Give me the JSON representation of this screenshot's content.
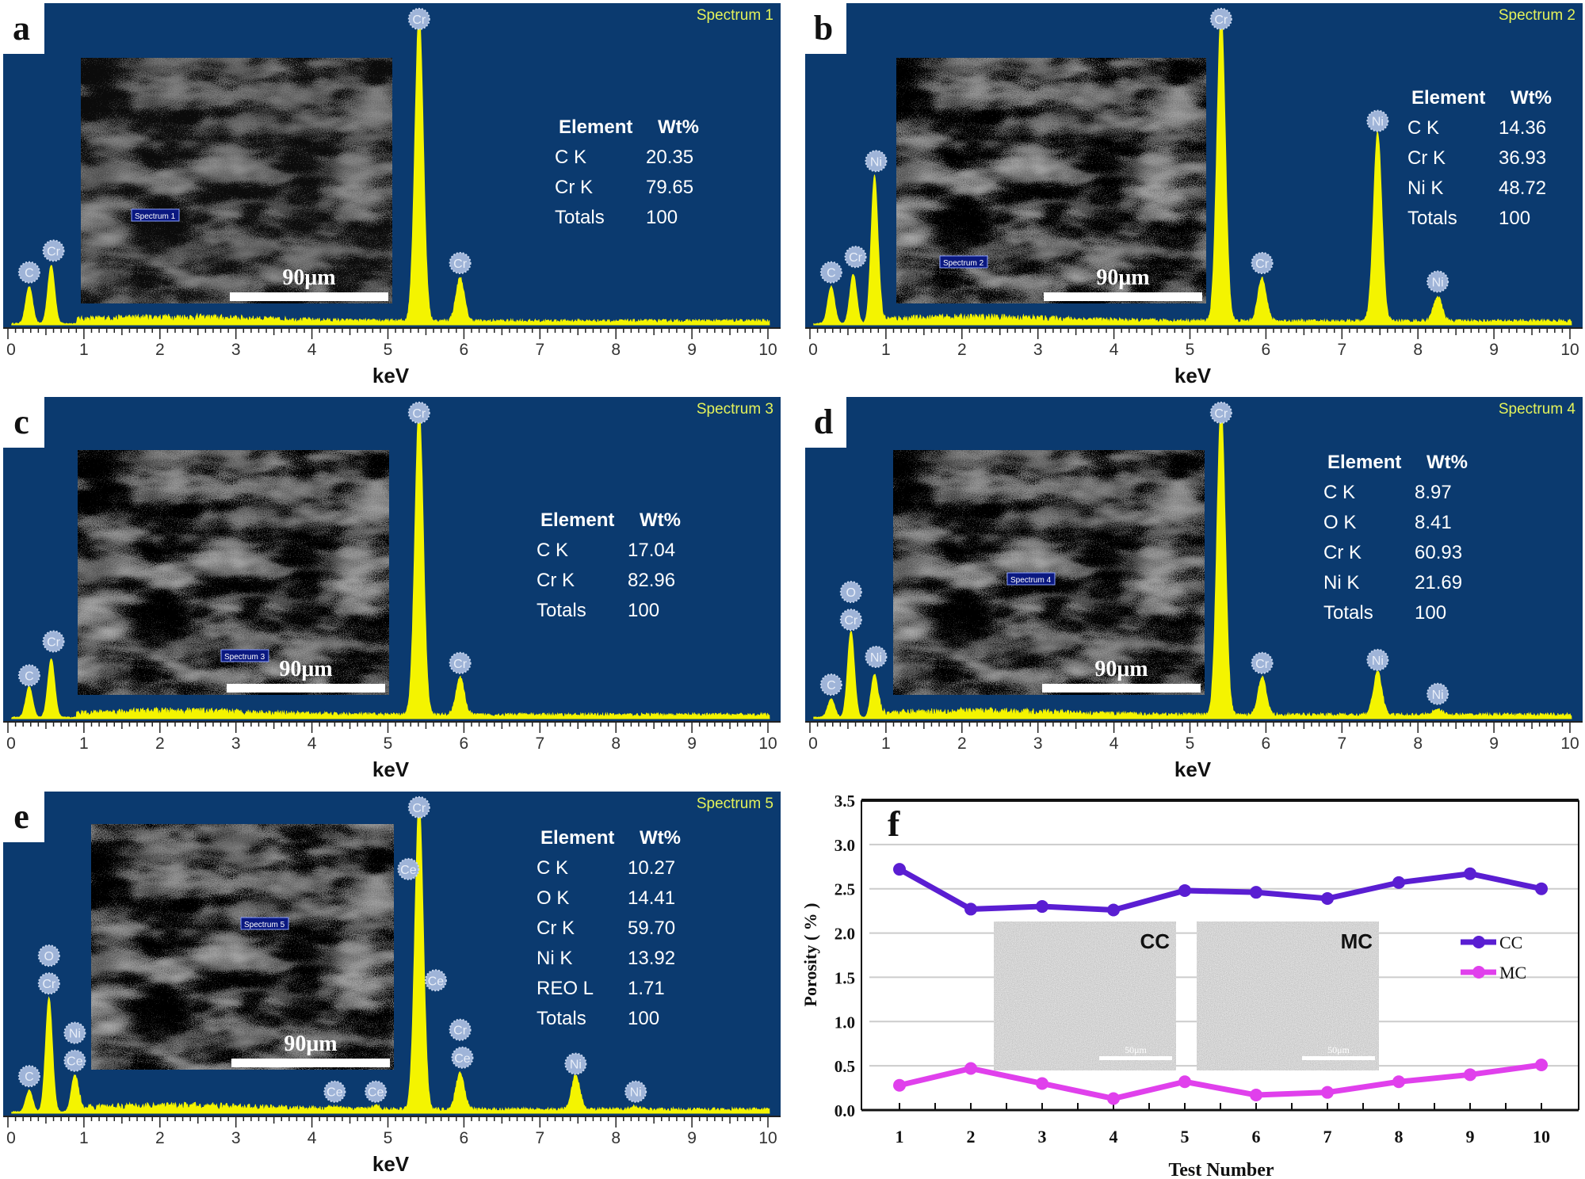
{
  "colors": {
    "plot_bg": "#0b3a6f",
    "spectrum": "#f4f400",
    "spectrum_title": "#e4f25a",
    "cc": "#5a1ed2",
    "mc": "#e040ec"
  },
  "chart_data": [
    {
      "type": "area",
      "panel": "a",
      "title": "Spectrum 1",
      "xlabel": "keV",
      "xlim": [
        0,
        10
      ],
      "xticks": [
        "0",
        "1",
        "2",
        "3",
        "4",
        "5",
        "6",
        "7",
        "8",
        "9",
        "10"
      ],
      "scale_bar": "90μm",
      "peaks": [
        {
          "kev": 0.28,
          "height": 0.12
        },
        {
          "kev": 0.57,
          "height": 0.19
        },
        {
          "kev": 5.41,
          "height": 1.0
        },
        {
          "kev": 5.95,
          "height": 0.14
        }
      ],
      "peak_labels": [
        {
          "element": "C",
          "kev": 0.28,
          "level": 0.17
        },
        {
          "element": "Cr",
          "kev": 0.6,
          "level": 0.24
        },
        {
          "element": "Cr",
          "kev": 5.41,
          "level": 0.99
        },
        {
          "element": "Cr",
          "kev": 5.95,
          "level": 0.2
        }
      ],
      "table": {
        "headers": [
          "Element",
          "Wt%"
        ],
        "rows": [
          [
            "C K",
            "20.35"
          ],
          [
            "Cr K",
            "79.65"
          ],
          [
            "Totals",
            "100"
          ]
        ]
      }
    },
    {
      "type": "area",
      "panel": "b",
      "title": "Spectrum 2",
      "xlabel": "keV",
      "xlim": [
        0,
        10
      ],
      "xticks": [
        "0",
        "1",
        "2",
        "3",
        "4",
        "5",
        "6",
        "7",
        "8",
        "9",
        "10"
      ],
      "scale_bar": "90μm",
      "peaks": [
        {
          "kev": 0.28,
          "height": 0.12
        },
        {
          "kev": 0.57,
          "height": 0.16
        },
        {
          "kev": 0.85,
          "height": 0.48
        },
        {
          "kev": 5.41,
          "height": 1.0
        },
        {
          "kev": 5.95,
          "height": 0.14
        },
        {
          "kev": 7.47,
          "height": 0.61
        },
        {
          "kev": 8.26,
          "height": 0.08
        }
      ],
      "peak_labels": [
        {
          "element": "C",
          "kev": 0.28,
          "level": 0.17
        },
        {
          "element": "Cr",
          "kev": 0.6,
          "level": 0.22
        },
        {
          "element": "Ni",
          "kev": 0.87,
          "level": 0.53
        },
        {
          "element": "Cr",
          "kev": 5.41,
          "level": 0.99
        },
        {
          "element": "Cr",
          "kev": 5.95,
          "level": 0.2
        },
        {
          "element": "Ni",
          "kev": 7.47,
          "level": 0.66
        },
        {
          "element": "Ni",
          "kev": 8.26,
          "level": 0.14
        }
      ],
      "table": {
        "headers": [
          "Element",
          "Wt%"
        ],
        "rows": [
          [
            "C K",
            "14.36"
          ],
          [
            "Cr K",
            "36.93"
          ],
          [
            "Ni K",
            "48.72"
          ],
          [
            "Totals",
            "100"
          ]
        ]
      }
    },
    {
      "type": "area",
      "panel": "c",
      "title": "Spectrum 3",
      "xlabel": "keV",
      "xlim": [
        0,
        10
      ],
      "xticks": [
        "0",
        "1",
        "2",
        "3",
        "4",
        "5",
        "6",
        "7",
        "8",
        "9",
        "10"
      ],
      "scale_bar": "90μm",
      "peaks": [
        {
          "kev": 0.28,
          "height": 0.1
        },
        {
          "kev": 0.57,
          "height": 0.19
        },
        {
          "kev": 5.41,
          "height": 1.0
        },
        {
          "kev": 5.95,
          "height": 0.12
        }
      ],
      "peak_labels": [
        {
          "element": "C",
          "kev": 0.28,
          "level": 0.14
        },
        {
          "element": "Cr",
          "kev": 0.6,
          "level": 0.25
        },
        {
          "element": "Cr",
          "kev": 5.41,
          "level": 0.99
        },
        {
          "element": "Cr",
          "kev": 5.95,
          "level": 0.18
        }
      ],
      "table": {
        "headers": [
          "Element",
          "Wt%"
        ],
        "rows": [
          [
            "C K",
            "17.04"
          ],
          [
            "Cr K",
            "82.96"
          ],
          [
            "Totals",
            "100"
          ]
        ]
      }
    },
    {
      "type": "area",
      "panel": "d",
      "title": "Spectrum 4",
      "xlabel": "keV",
      "xlim": [
        0,
        10
      ],
      "xticks": [
        "0",
        "1",
        "2",
        "3",
        "4",
        "5",
        "6",
        "7",
        "8",
        "9",
        "10"
      ],
      "scale_bar": "90μm",
      "peaks": [
        {
          "kev": 0.28,
          "height": 0.06
        },
        {
          "kev": 0.54,
          "height": 0.28
        },
        {
          "kev": 0.85,
          "height": 0.14
        },
        {
          "kev": 5.41,
          "height": 1.0
        },
        {
          "kev": 5.95,
          "height": 0.12
        },
        {
          "kev": 7.47,
          "height": 0.14
        },
        {
          "kev": 8.26,
          "height": 0.02
        }
      ],
      "peak_labels": [
        {
          "element": "C",
          "kev": 0.28,
          "level": 0.11
        },
        {
          "element": "O",
          "kev": 0.54,
          "level": 0.41
        },
        {
          "element": "Cr",
          "kev": 0.54,
          "level": 0.32
        },
        {
          "element": "Ni",
          "kev": 0.87,
          "level": 0.2
        },
        {
          "element": "Cr",
          "kev": 5.41,
          "level": 0.99
        },
        {
          "element": "Cr",
          "kev": 5.95,
          "level": 0.18
        },
        {
          "element": "Ni",
          "kev": 7.47,
          "level": 0.19
        },
        {
          "element": "Ni",
          "kev": 8.26,
          "level": 0.08
        }
      ],
      "table": {
        "headers": [
          "Element",
          "Wt%"
        ],
        "rows": [
          [
            "C K",
            "8.97"
          ],
          [
            "O K",
            "8.41"
          ],
          [
            "Cr K",
            "60.93"
          ],
          [
            "Ni K",
            "21.69"
          ],
          [
            "Totals",
            "100"
          ]
        ]
      }
    },
    {
      "type": "area",
      "panel": "e",
      "title": "Spectrum 5",
      "xlabel": "keV",
      "xlim": [
        0,
        10
      ],
      "xticks": [
        "0",
        "1",
        "2",
        "3",
        "4",
        "5",
        "6",
        "7",
        "8",
        "9",
        "10"
      ],
      "scale_bar": "90μm",
      "peaks": [
        {
          "kev": 0.28,
          "height": 0.07
        },
        {
          "kev": 0.54,
          "height": 0.37
        },
        {
          "kev": 0.88,
          "height": 0.12
        },
        {
          "kev": 4.3,
          "height": 0.01
        },
        {
          "kev": 4.84,
          "height": 0.01
        },
        {
          "kev": 5.41,
          "height": 1.0
        },
        {
          "kev": 5.95,
          "height": 0.12
        },
        {
          "kev": 7.47,
          "height": 0.11
        },
        {
          "kev": 8.26,
          "height": 0.01
        }
      ],
      "peak_labels": [
        {
          "element": "C",
          "kev": 0.28,
          "level": 0.12
        },
        {
          "element": "O",
          "kev": 0.54,
          "level": 0.51
        },
        {
          "element": "Cr",
          "kev": 0.54,
          "level": 0.42
        },
        {
          "element": "Ni",
          "kev": 0.88,
          "level": 0.26
        },
        {
          "element": "Ce",
          "kev": 0.88,
          "level": 0.17
        },
        {
          "element": "Ce",
          "kev": 4.3,
          "level": 0.07
        },
        {
          "element": "Ce",
          "kev": 4.84,
          "level": 0.07
        },
        {
          "element": "Cr",
          "kev": 5.41,
          "level": 0.99
        },
        {
          "element": "Ce",
          "kev": 5.27,
          "level": 0.79
        },
        {
          "element": "Ce",
          "kev": 5.63,
          "level": 0.43
        },
        {
          "element": "Cr",
          "kev": 5.95,
          "level": 0.27
        },
        {
          "element": "Ce",
          "kev": 5.98,
          "level": 0.18
        },
        {
          "element": "Ni",
          "kev": 7.47,
          "level": 0.16
        },
        {
          "element": "Ni",
          "kev": 8.26,
          "level": 0.07
        }
      ],
      "table": {
        "headers": [
          "Element",
          "Wt%"
        ],
        "rows": [
          [
            "C K",
            "10.27"
          ],
          [
            "O K",
            "14.41"
          ],
          [
            "Cr K",
            "59.70"
          ],
          [
            "Ni K",
            "13.92"
          ],
          [
            "REO L",
            "1.71"
          ],
          [
            "Totals",
            "100"
          ]
        ]
      }
    },
    {
      "type": "line",
      "panel": "f",
      "xlabel": "Test Number",
      "ylabel": "Porosity ( % )",
      "categories": [
        "1",
        "2",
        "3",
        "4",
        "5",
        "6",
        "7",
        "8",
        "9",
        "10"
      ],
      "ylim": [
        0,
        3.5
      ],
      "yticks": [
        "0.0",
        "0.5",
        "1.0",
        "1.5",
        "2.0",
        "2.5",
        "3.0",
        "3.5"
      ],
      "grid": true,
      "legend": "right",
      "series": [
        {
          "name": "CC",
          "values": [
            2.72,
            2.27,
            2.3,
            2.26,
            2.48,
            2.46,
            2.39,
            2.57,
            2.67,
            2.5
          ]
        },
        {
          "name": "MC",
          "values": [
            0.28,
            0.47,
            0.3,
            0.13,
            0.32,
            0.17,
            0.2,
            0.32,
            0.4,
            0.51
          ]
        }
      ],
      "insets": [
        {
          "label": "CC",
          "scale_bar": "50μm"
        },
        {
          "label": "MC",
          "scale_bar": "50μm"
        }
      ]
    }
  ]
}
